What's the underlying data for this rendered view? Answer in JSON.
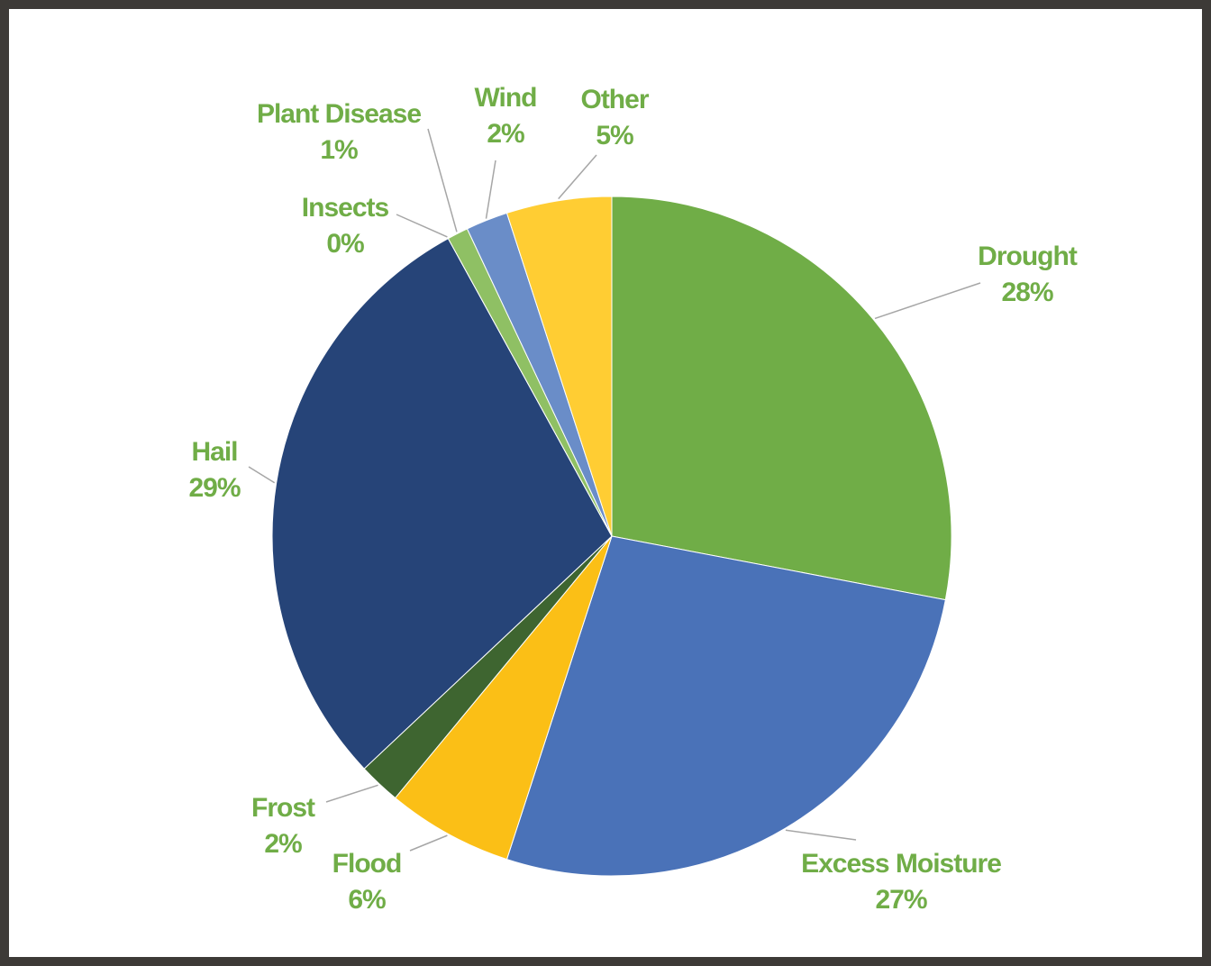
{
  "chart_data": {
    "type": "pie",
    "categories": [
      "Drought",
      "Excess Moisture",
      "Flood",
      "Frost",
      "Hail",
      "Insects",
      "Plant Disease",
      "Wind",
      "Other"
    ],
    "values": [
      28,
      27,
      6,
      2,
      29,
      0,
      1,
      2,
      5
    ],
    "value_labels": [
      "28%",
      "27%",
      "6%",
      "2%",
      "29%",
      "0%",
      "1%",
      "2%",
      "5%"
    ],
    "colors": [
      "#70ad47",
      "#4a72b8",
      "#fbbf16",
      "#3e6530",
      "#264478",
      "#9e480e",
      "#8fc064",
      "#6a8dc8",
      "#ffcd33"
    ]
  }
}
